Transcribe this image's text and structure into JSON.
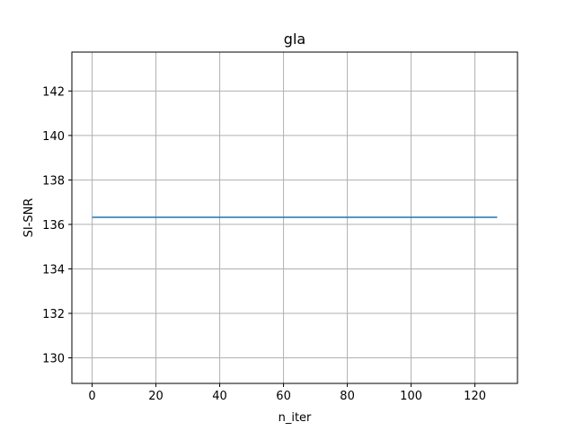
{
  "chart_data": {
    "type": "line",
    "title": "gla",
    "xlabel": "n_iter",
    "ylabel": "SI-SNR",
    "grid": true,
    "legend": "none",
    "xlim": [
      -6.35,
      133.35
    ],
    "ylim": [
      128.85,
      143.75
    ],
    "xticks": [
      0,
      20,
      40,
      60,
      80,
      100,
      120
    ],
    "yticks": [
      130,
      132,
      134,
      136,
      138,
      140,
      142
    ],
    "series": [
      {
        "color": "#1f77b4",
        "x": [
          0,
          127
        ],
        "y": [
          136.32,
          136.32
        ]
      }
    ]
  }
}
